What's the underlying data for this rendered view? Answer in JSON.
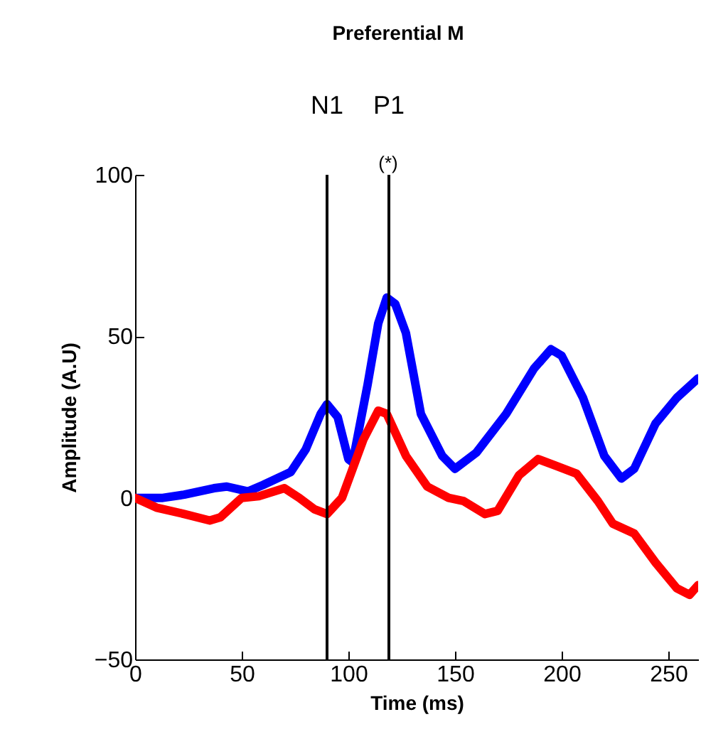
{
  "chart_data": {
    "type": "line",
    "title": "Preferential M",
    "xlabel": "Time (ms)",
    "ylabel": "Amplitude (A.U)",
    "xlim": [
      0,
      264
    ],
    "xticks": [
      0,
      50,
      100,
      150,
      200,
      250
    ],
    "ylim": [
      -50,
      100
    ],
    "yticks": [
      -50,
      0,
      50,
      100
    ],
    "grid": false,
    "line_style": "solid",
    "series": [
      {
        "color": "#0000ff",
        "x": [
          0,
          13,
          23,
          37,
          43,
          53,
          60,
          73,
          80,
          87,
          90,
          95,
          100,
          102,
          109,
          114,
          118,
          122,
          127,
          134,
          144,
          150,
          160,
          174,
          187,
          195,
          200,
          210,
          220,
          228,
          234,
          244,
          254,
          264
        ],
        "values": [
          0,
          0,
          1,
          3,
          3.5,
          2,
          4,
          8,
          15,
          26,
          29,
          25,
          12,
          11,
          35,
          54,
          62,
          60,
          51,
          26,
          13,
          9,
          14,
          26,
          40,
          46,
          44,
          31,
          13,
          6,
          9,
          23,
          31,
          37
        ]
      },
      {
        "color": "#ff0000",
        "x": [
          0,
          10,
          23,
          35,
          40,
          50,
          58,
          70,
          77,
          84,
          90,
          97,
          107,
          114,
          118,
          127,
          137,
          147,
          154,
          164,
          170,
          180,
          189,
          197,
          207,
          217,
          224,
          234,
          244,
          254,
          260,
          264
        ],
        "values": [
          0,
          -3,
          -5,
          -7,
          -6,
          0,
          0.5,
          3,
          0,
          -3.5,
          -5,
          0,
          18,
          27,
          26,
          13,
          3.5,
          0,
          -1,
          -5,
          -4,
          7,
          12,
          10,
          7.5,
          -1,
          -8,
          -11,
          -20,
          -28,
          -30,
          -27
        ]
      }
    ],
    "ref_lines": [
      {
        "axis": "x",
        "value": 90,
        "label": "N1",
        "color": "#000000"
      },
      {
        "axis": "x",
        "value": 119,
        "label": "P1",
        "color": "#000000"
      }
    ],
    "annotations": [
      "(*)"
    ]
  }
}
